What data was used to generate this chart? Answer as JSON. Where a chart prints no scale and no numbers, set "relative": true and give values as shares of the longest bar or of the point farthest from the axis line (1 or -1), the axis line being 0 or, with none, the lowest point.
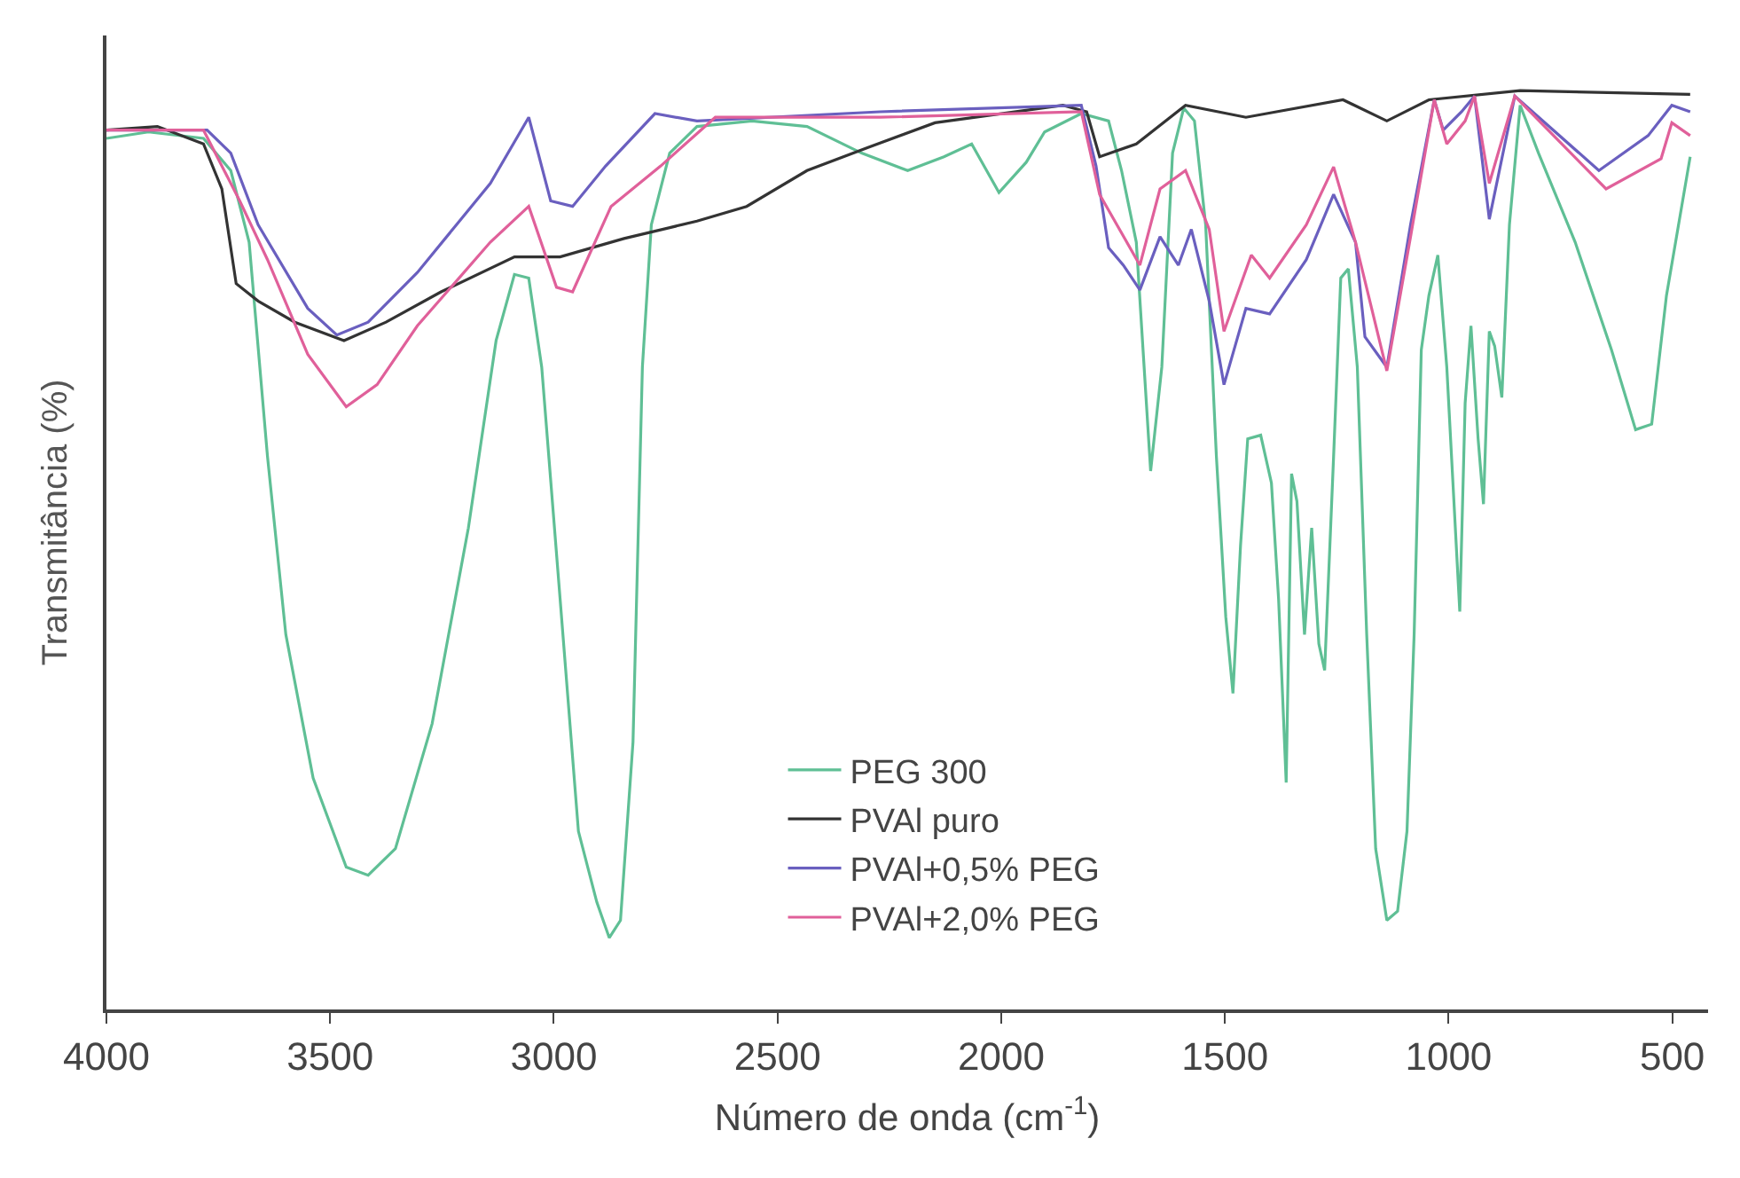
{
  "chart_data": {
    "type": "line",
    "relative": true,
    "xlabel": "Número de onda (cm$^{-1}$)",
    "ylabel": "Transmitância (%)",
    "xlim": [
      4000,
      420
    ],
    "xticks": [
      4000,
      3500,
      3000,
      2500,
      2000,
      1500,
      1000,
      500
    ],
    "legend": "bottom",
    "marker": "none",
    "line_style": "solid",
    "series": [
      {
        "name": "PEG 300",
        "color": "#5fbf95",
        "x": [
          4000,
          3906,
          3783,
          3722,
          3681,
          3640,
          3599,
          3538,
          3464,
          3415,
          3354,
          3272,
          3191,
          3129,
          3088,
          3056,
          3027,
          2986,
          2945,
          2904,
          2876,
          2851,
          2823,
          2802,
          2782,
          2741,
          2680,
          2557,
          2434,
          2312,
          2209,
          2128,
          2066,
          2005,
          1944,
          1903,
          1821,
          1760,
          1731,
          1698,
          1666,
          1641,
          1617,
          1592,
          1568,
          1543,
          1519,
          1498,
          1482,
          1465,
          1449,
          1420,
          1396,
          1380,
          1363,
          1351,
          1339,
          1322,
          1306,
          1290,
          1277,
          1257,
          1241,
          1224,
          1204,
          1183,
          1163,
          1138,
          1114,
          1093,
          1077,
          1061,
          1044,
          1024,
          1004,
          975,
          963,
          950,
          934,
          922,
          909,
          897,
          881,
          864,
          840,
          799,
          717,
          636,
          582,
          546,
          513,
          460
        ],
        "values": [
          0.948,
          0.955,
          0.948,
          0.913,
          0.835,
          0.602,
          0.408,
          0.252,
          0.155,
          0.146,
          0.175,
          0.311,
          0.524,
          0.728,
          0.8,
          0.796,
          0.699,
          0.447,
          0.194,
          0.117,
          0.078,
          0.097,
          0.291,
          0.699,
          0.854,
          0.932,
          0.961,
          0.967,
          0.961,
          0.932,
          0.913,
          0.928,
          0.942,
          0.889,
          0.922,
          0.955,
          0.975,
          0.967,
          0.913,
          0.835,
          0.586,
          0.699,
          0.932,
          0.981,
          0.967,
          0.854,
          0.602,
          0.427,
          0.344,
          0.505,
          0.621,
          0.625,
          0.573,
          0.447,
          0.247,
          0.583,
          0.553,
          0.408,
          0.524,
          0.398,
          0.369,
          0.602,
          0.796,
          0.806,
          0.699,
          0.408,
          0.175,
          0.097,
          0.107,
          0.194,
          0.408,
          0.718,
          0.777,
          0.821,
          0.699,
          0.433,
          0.66,
          0.744,
          0.621,
          0.55,
          0.738,
          0.722,
          0.666,
          0.854,
          0.984,
          0.932,
          0.835,
          0.718,
          0.631,
          0.637,
          0.777,
          0.928
        ]
      },
      {
        "name": "PVAl puro",
        "color": "#333333",
        "x": [
          4000,
          3886,
          3783,
          3742,
          3710,
          3661,
          3579,
          3469,
          3375,
          3252,
          3088,
          2986,
          2843,
          2680,
          2569,
          2434,
          2299,
          2148,
          1862,
          1809,
          1780,
          1698,
          1588,
          1453,
          1236,
          1138,
          1044,
          840,
          460
        ],
        "values": [
          0.957,
          0.961,
          0.942,
          0.893,
          0.79,
          0.771,
          0.748,
          0.728,
          0.748,
          0.781,
          0.819,
          0.819,
          0.839,
          0.858,
          0.874,
          0.913,
          0.938,
          0.965,
          0.984,
          0.977,
          0.928,
          0.942,
          0.984,
          0.971,
          0.99,
          0.967,
          0.99,
          1.0,
          0.996
        ]
      },
      {
        "name": "PVAl+0,5% PEG",
        "color": "#6a5fbf",
        "x": [
          4000,
          3775,
          3722,
          3661,
          3550,
          3485,
          3415,
          3305,
          3142,
          3056,
          3007,
          2958,
          2884,
          2774,
          2680,
          2271,
          1821,
          1788,
          1760,
          1727,
          1690,
          1645,
          1604,
          1575,
          1535,
          1502,
          1453,
          1400,
          1318,
          1257,
          1208,
          1187,
          1138,
          1085,
          1032,
          1012,
          971,
          942,
          909,
          852,
          664,
          554,
          501,
          460
        ],
        "values": [
          0.957,
          0.957,
          0.932,
          0.854,
          0.763,
          0.734,
          0.748,
          0.802,
          0.899,
          0.971,
          0.88,
          0.874,
          0.918,
          0.975,
          0.967,
          0.977,
          0.984,
          0.918,
          0.829,
          0.81,
          0.783,
          0.841,
          0.81,
          0.849,
          0.771,
          0.68,
          0.763,
          0.757,
          0.816,
          0.887,
          0.835,
          0.732,
          0.699,
          0.854,
          0.99,
          0.957,
          0.977,
          0.994,
          0.86,
          0.994,
          0.913,
          0.951,
          0.984,
          0.977
        ]
      },
      {
        "name": "PVAl+2,0% PEG",
        "color": "#e0609a",
        "x": [
          4000,
          3783,
          3702,
          3640,
          3550,
          3464,
          3395,
          3305,
          3142,
          3056,
          2994,
          2958,
          2872,
          2761,
          2639,
          2271,
          1821,
          1780,
          1690,
          1645,
          1588,
          1535,
          1502,
          1441,
          1400,
          1318,
          1257,
          1208,
          1138,
          1085,
          1032,
          1004,
          963,
          942,
          909,
          852,
          648,
          525,
          501,
          460
        ],
        "values": [
          0.957,
          0.957,
          0.88,
          0.816,
          0.713,
          0.656,
          0.68,
          0.744,
          0.835,
          0.874,
          0.786,
          0.781,
          0.874,
          0.918,
          0.971,
          0.971,
          0.977,
          0.887,
          0.81,
          0.893,
          0.913,
          0.849,
          0.738,
          0.821,
          0.796,
          0.854,
          0.917,
          0.835,
          0.695,
          0.841,
          0.99,
          0.942,
          0.967,
          0.994,
          0.899,
          0.994,
          0.893,
          0.926,
          0.965,
          0.951
        ]
      }
    ]
  }
}
